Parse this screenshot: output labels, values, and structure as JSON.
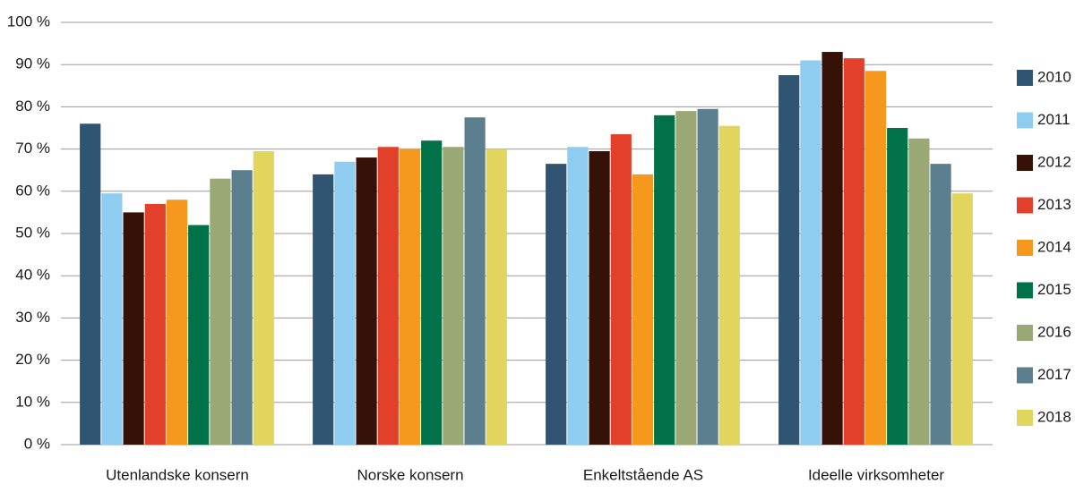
{
  "chart_data": {
    "type": "bar",
    "categories": [
      "Utenlandske konsern",
      "Norske konsern",
      "Enkeltstående AS",
      "Ideelle virksomheter"
    ],
    "series": [
      {
        "name": "2010",
        "color": "#2f5572",
        "values": [
          76,
          64,
          66.5,
          87.5
        ]
      },
      {
        "name": "2011",
        "color": "#8fcdf0",
        "values": [
          59.5,
          67,
          70.5,
          91
        ]
      },
      {
        "name": "2012",
        "color": "#361108",
        "values": [
          55,
          68,
          69.5,
          93
        ]
      },
      {
        "name": "2013",
        "color": "#e2402a",
        "values": [
          57,
          70.5,
          73.5,
          91.5
        ]
      },
      {
        "name": "2014",
        "color": "#f6971e",
        "values": [
          58,
          70,
          64,
          88.5
        ]
      },
      {
        "name": "2015",
        "color": "#007148",
        "values": [
          52,
          72,
          78,
          75
        ]
      },
      {
        "name": "2016",
        "color": "#99a874",
        "values": [
          63,
          70.5,
          79,
          72.5
        ]
      },
      {
        "name": "2017",
        "color": "#5c7f8f",
        "values": [
          65,
          77.5,
          79.5,
          66.5
        ]
      },
      {
        "name": "2018",
        "color": "#e2d55e",
        "values": [
          69.5,
          70,
          75.5,
          59.5
        ]
      }
    ],
    "ylim": [
      0,
      100
    ],
    "yticks": [
      {
        "value": 0,
        "label": "0 %"
      },
      {
        "value": 10,
        "label": "10 %"
      },
      {
        "value": 20,
        "label": "20 %"
      },
      {
        "value": 30,
        "label": "30 %"
      },
      {
        "value": 40,
        "label": "40 %"
      },
      {
        "value": 50,
        "label": "50 %"
      },
      {
        "value": 60,
        "label": "60 %"
      },
      {
        "value": 70,
        "label": "70 %"
      },
      {
        "value": 80,
        "label": "80 %"
      },
      {
        "value": 90,
        "label": "90 %"
      },
      {
        "value": 100,
        "label": "100 %"
      }
    ],
    "grid": true,
    "legend": "right"
  }
}
